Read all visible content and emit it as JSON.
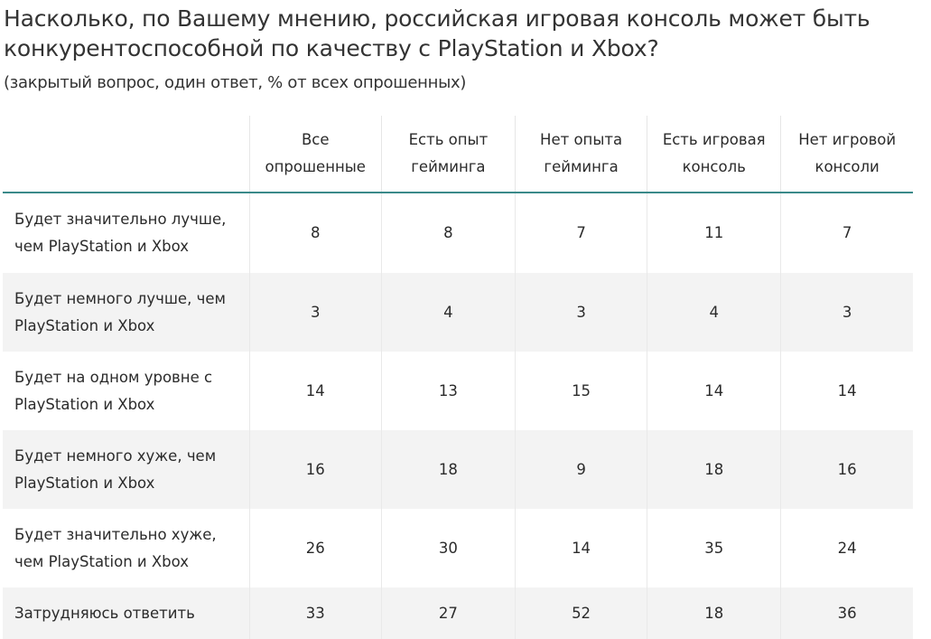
{
  "title": "Насколько, по Вашему мнению, российская игровая консоль может быть конкурентоспособной по качеству с PlayStation и Xbox?",
  "subtitle": "(закрытый вопрос, один ответ, % от всех опрошенных)",
  "table": {
    "columns": [
      "",
      "Все опрошенные",
      "Есть опыт гейминга",
      "Нет опыта гейминга",
      "Есть игровая консоль",
      "Нет игровой консоли"
    ],
    "rows": [
      {
        "label": "Будет значительно лучше, чем PlayStation и Xbox",
        "values": [
          "8",
          "8",
          "7",
          "11",
          "7"
        ]
      },
      {
        "label": "Будет немного лучше, чем PlayStation и Xbox",
        "values": [
          "3",
          "4",
          "3",
          "4",
          "3"
        ]
      },
      {
        "label": "Будет на одном уровне с PlayStation и Xbox",
        "values": [
          "14",
          "13",
          "15",
          "14",
          "14"
        ]
      },
      {
        "label": "Будет немного хуже, чем PlayStation и Xbox",
        "values": [
          "16",
          "18",
          "9",
          "18",
          "16"
        ]
      },
      {
        "label": "Будет значительно хуже, чем PlayStation и Xbox",
        "values": [
          "26",
          "30",
          "14",
          "35",
          "24"
        ]
      },
      {
        "label": "Затрудняюсь ответить",
        "values": [
          "33",
          "27",
          "52",
          "18",
          "36"
        ]
      }
    ]
  },
  "colors": {
    "header_rule": "#3a8a8a",
    "stripe": "#f3f3f3",
    "text": "#2b2b2b"
  }
}
